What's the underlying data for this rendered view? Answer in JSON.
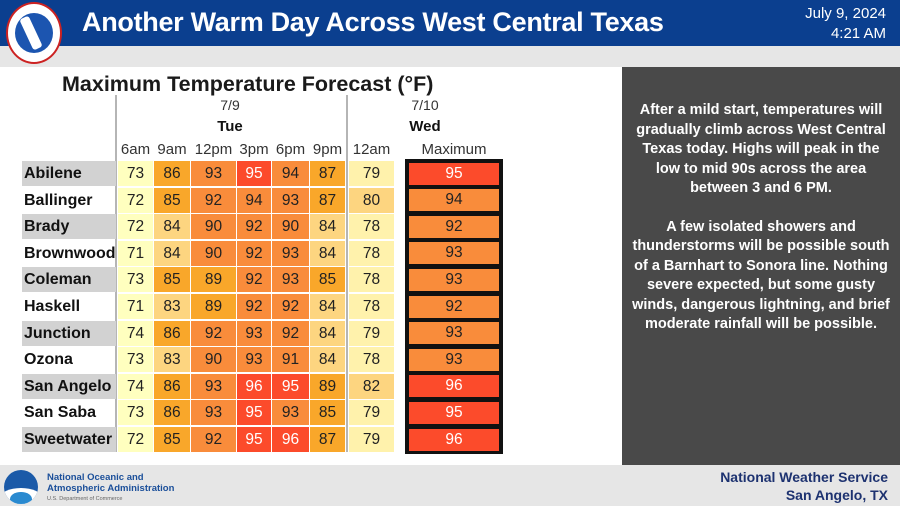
{
  "header": {
    "title": "Another Warm Day Across West Central Texas",
    "date": "July 9, 2024",
    "time": "4:21 AM",
    "logo_text": "NATIONAL WEATHER SERVICE"
  },
  "forecast": {
    "title": "Maximum Temperature Forecast (°F)",
    "day1": {
      "date": "7/9",
      "weekday": "Tue"
    },
    "day2": {
      "date": "7/10",
      "weekday": "Wed"
    },
    "times": [
      "6am",
      "9am",
      "12pm",
      "3pm",
      "6pm",
      "9pm",
      "12am"
    ],
    "max_label": "Maximum",
    "color_scale": {
      "70-74": "#ffffbf",
      "75-79": "#fff2ac",
      "80-84": "#fdd580",
      "85-89": "#f9a72a",
      "90-94": "#f98c3b",
      "95+": "#fc4b2b"
    },
    "rows": [
      {
        "city": "Abilene",
        "temps": [
          73,
          86,
          93,
          95,
          94,
          87,
          79
        ],
        "max": 95
      },
      {
        "city": "Ballinger",
        "temps": [
          72,
          85,
          92,
          94,
          93,
          87,
          80
        ],
        "max": 94
      },
      {
        "city": "Brady",
        "temps": [
          72,
          84,
          90,
          92,
          90,
          84,
          78
        ],
        "max": 92
      },
      {
        "city": "Brownwood",
        "temps": [
          71,
          84,
          90,
          92,
          93,
          84,
          78
        ],
        "max": 93
      },
      {
        "city": "Coleman",
        "temps": [
          73,
          85,
          89,
          92,
          93,
          85,
          78
        ],
        "max": 93
      },
      {
        "city": "Haskell",
        "temps": [
          71,
          83,
          89,
          92,
          92,
          84,
          78
        ],
        "max": 92
      },
      {
        "city": "Junction",
        "temps": [
          74,
          86,
          92,
          93,
          92,
          84,
          79
        ],
        "max": 93
      },
      {
        "city": "Ozona",
        "temps": [
          73,
          83,
          90,
          93,
          91,
          84,
          78
        ],
        "max": 93
      },
      {
        "city": "San Angelo",
        "temps": [
          74,
          86,
          93,
          96,
          95,
          89,
          82
        ],
        "max": 96
      },
      {
        "city": "San Saba",
        "temps": [
          73,
          86,
          93,
          95,
          93,
          85,
          79
        ],
        "max": 95
      },
      {
        "city": "Sweetwater",
        "temps": [
          72,
          85,
          92,
          95,
          96,
          87,
          79
        ],
        "max": 96
      }
    ]
  },
  "discussion": [
    "After a mild start, temperatures will gradually climb across West Central Texas today. Highs will peak in the low to mid 90s across the area between 3 and 6 PM.",
    "A few isolated showers and thunderstorms will be possible south of a Barnhart to Sonora line. Nothing severe expected, but some gusty winds, dangerous lightning, and brief moderate rainfall will be possible."
  ],
  "footer": {
    "noaa_line1": "National Oceanic and",
    "noaa_line2": "Atmospheric Administration",
    "noaa_dept": "U.S. Department of Commerce",
    "office_line1": "National Weather Service",
    "office_line2": "San Angelo, TX"
  }
}
